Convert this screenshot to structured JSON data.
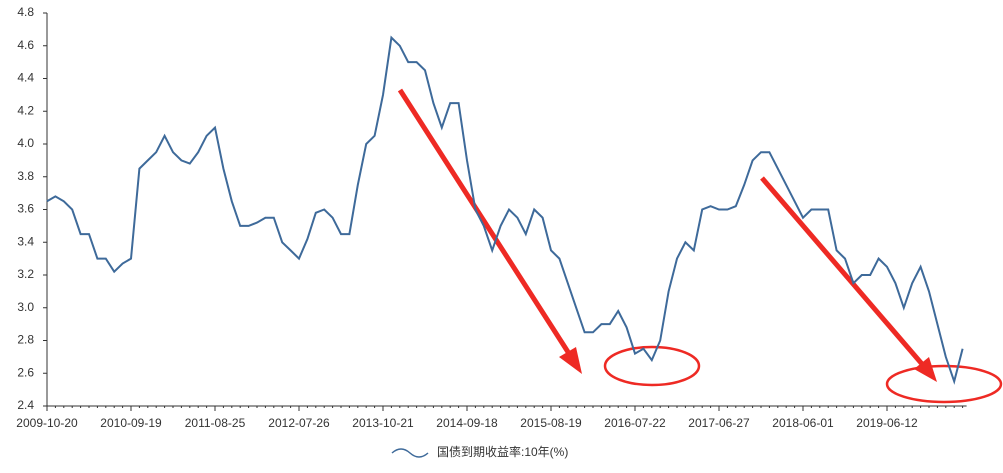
{
  "chart_data": {
    "type": "line",
    "categories": [
      "2009-10-20",
      null,
      null,
      null,
      null,
      null,
      null,
      null,
      null,
      null,
      "2010-09-19",
      null,
      null,
      null,
      null,
      null,
      null,
      null,
      null,
      null,
      "2011-08-25",
      null,
      null,
      null,
      null,
      null,
      null,
      null,
      null,
      null,
      "2012-07-26",
      null,
      null,
      null,
      null,
      null,
      null,
      null,
      null,
      null,
      "2013-10-21",
      null,
      null,
      null,
      null,
      null,
      null,
      null,
      null,
      null,
      "2014-09-18",
      null,
      null,
      null,
      null,
      null,
      null,
      null,
      null,
      null,
      "2015-08-19",
      null,
      null,
      null,
      null,
      null,
      null,
      null,
      null,
      null,
      "2016-07-22",
      null,
      null,
      null,
      null,
      null,
      null,
      null,
      null,
      null,
      "2017-06-27",
      null,
      null,
      null,
      null,
      null,
      null,
      null,
      null,
      null,
      "2018-06-01",
      null,
      null,
      null,
      null,
      null,
      null,
      null,
      null,
      null,
      "2019-06-12",
      null,
      null,
      null,
      null,
      null,
      null,
      null,
      null,
      null
    ],
    "series": [
      {
        "name": "国债到期收益率:10年(%)",
        "color": "#3e6a9a",
        "values": [
          3.65,
          3.68,
          3.65,
          3.6,
          3.45,
          3.45,
          3.3,
          3.3,
          3.22,
          3.27,
          3.3,
          3.85,
          3.9,
          3.95,
          4.05,
          3.95,
          3.9,
          3.88,
          3.95,
          4.05,
          4.1,
          3.85,
          3.65,
          3.5,
          3.5,
          3.52,
          3.55,
          3.55,
          3.4,
          3.35,
          3.3,
          3.42,
          3.58,
          3.6,
          3.55,
          3.45,
          3.45,
          3.75,
          4.0,
          4.05,
          4.3,
          4.65,
          4.6,
          4.5,
          4.5,
          4.45,
          4.25,
          4.1,
          4.25,
          4.25,
          3.9,
          3.6,
          3.5,
          3.35,
          3.5,
          3.6,
          3.55,
          3.45,
          3.6,
          3.55,
          3.35,
          3.3,
          3.15,
          3.0,
          2.85,
          2.85,
          2.9,
          2.9,
          2.98,
          2.88,
          2.72,
          2.75,
          2.68,
          2.8,
          3.1,
          3.3,
          3.4,
          3.35,
          3.6,
          3.62,
          3.6,
          3.6,
          3.62,
          3.75,
          3.9,
          3.95,
          3.95,
          3.85,
          3.75,
          3.65,
          3.55,
          3.6,
          3.6,
          3.6,
          3.35,
          3.3,
          3.15,
          3.2,
          3.2,
          3.3,
          3.25,
          3.15,
          3.0,
          3.15,
          3.25,
          3.1,
          2.9,
          2.7,
          2.55,
          2.75
        ]
      }
    ],
    "ylim": [
      2.4,
      4.8
    ],
    "yticks": [
      2.4,
      2.6,
      2.8,
      {
        "value": 3,
        "label": "3.0"
      },
      3.2,
      3.4,
      3.6,
      3.8,
      {
        "value": 4,
        "label": "4.0"
      },
      4.2,
      4.4,
      4.6,
      4.8
    ],
    "grid": false,
    "legend": "bottom"
  }
}
